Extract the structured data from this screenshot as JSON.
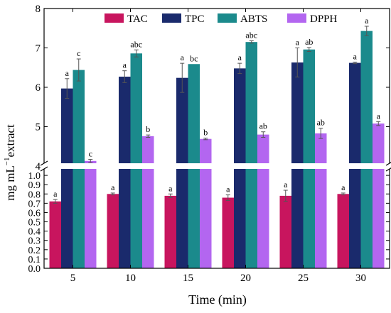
{
  "chart_data": {
    "type": "bar",
    "xlabel": "Time (min)",
    "ylabel_main": "mg mL",
    "ylabel_sup": "−1",
    "ylabel_rest": "extract",
    "categories": [
      "5",
      "10",
      "15",
      "20",
      "25",
      "30"
    ],
    "y_axis_break": {
      "lower_range": [
        0.0,
        1.1
      ],
      "upper_range": [
        4.0,
        8.0
      ]
    },
    "lower_ticks": [
      "0.0",
      "0.1",
      "0.2",
      "0.3",
      "0.4",
      "0.5",
      "0.6",
      "0.7",
      "0.8",
      "0.9",
      "1.0"
    ],
    "upper_ticks": [
      "4",
      "5",
      "6",
      "7",
      "8"
    ],
    "series": [
      {
        "name": "TAC",
        "color": "#c8155e",
        "values": [
          0.72,
          0.8,
          0.78,
          0.76,
          0.78,
          0.8
        ],
        "errors": [
          0.02,
          0.01,
          0.02,
          0.03,
          0.06,
          0.01
        ],
        "letters": [
          "a",
          "a",
          "a",
          "a",
          "a",
          "a"
        ]
      },
      {
        "name": "TPC",
        "color": "#1a2a6c",
        "values": [
          5.97,
          6.27,
          6.24,
          6.48,
          6.63,
          6.62
        ],
        "errors": [
          0.25,
          0.15,
          0.37,
          0.13,
          0.37,
          0.02
        ],
        "letters": [
          "a",
          "a",
          "a",
          "a",
          "a",
          "a"
        ]
      },
      {
        "name": "ABTS",
        "color": "#1b8a8c",
        "values": [
          6.44,
          6.86,
          6.59,
          7.15,
          6.96,
          7.43
        ],
        "errors": [
          0.28,
          0.09,
          0.0,
          0.03,
          0.05,
          0.12
        ],
        "letters": [
          "c",
          "abc",
          "bc",
          "abc",
          "ab",
          "a"
        ]
      },
      {
        "name": "DPPH",
        "color": "#b366f0",
        "values": [
          4.13,
          4.76,
          4.69,
          4.8,
          4.83,
          5.08
        ],
        "errors": [
          0.04,
          0.03,
          0.02,
          0.07,
          0.13,
          0.05
        ],
        "letters": [
          "c",
          "b",
          "b",
          "ab",
          "ab",
          "a"
        ]
      }
    ],
    "legend_position": "top",
    "grid": false
  }
}
